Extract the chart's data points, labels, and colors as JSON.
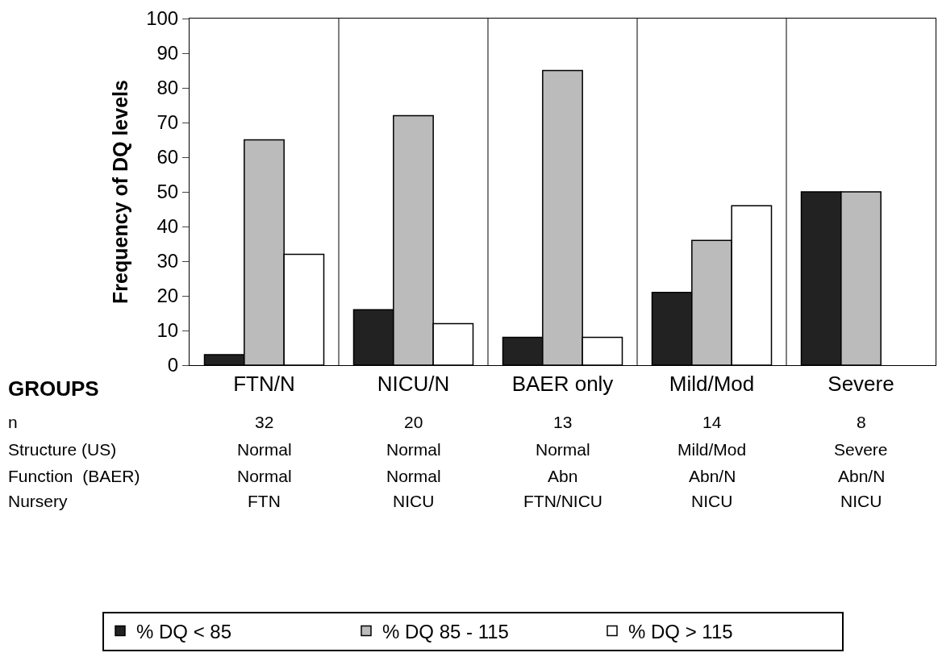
{
  "chart_data": {
    "type": "bar",
    "categories": [
      "FTN/N",
      "NICU/N",
      "BAER only",
      "Mild/Mod",
      "Severe"
    ],
    "xlabel": "GROUPS",
    "ylabel": "Frequency of DQ levels",
    "ylim": [
      0,
      100
    ],
    "yticks": [
      0,
      10,
      20,
      30,
      40,
      50,
      60,
      70,
      80,
      90,
      100
    ],
    "grid": "x",
    "legend": "bottom",
    "series": [
      {
        "name": "% DQ < 85",
        "color": "#222222",
        "values": [
          3,
          16,
          8,
          21,
          50
        ]
      },
      {
        "name": "% DQ 85 - 115",
        "color": "#bbbbbb",
        "values": [
          65,
          72,
          85,
          36,
          50
        ]
      },
      {
        "name": "% DQ > 115",
        "color": "#ffffff",
        "values": [
          32,
          12,
          8,
          46,
          null
        ]
      }
    ],
    "annotations": [
      "n",
      "32",
      "20",
      "13",
      "14",
      "8",
      "Structure (US)",
      "Normal",
      "Normal",
      "Normal",
      "Mild/Mod",
      "Severe",
      "Function  (BAER)",
      "Normal",
      "Normal",
      "Abn",
      "Abn/N",
      "Abn/N",
      "Nursery",
      "FTN",
      "NICU",
      "FTN/NICU",
      "NICU",
      "NICU"
    ]
  }
}
